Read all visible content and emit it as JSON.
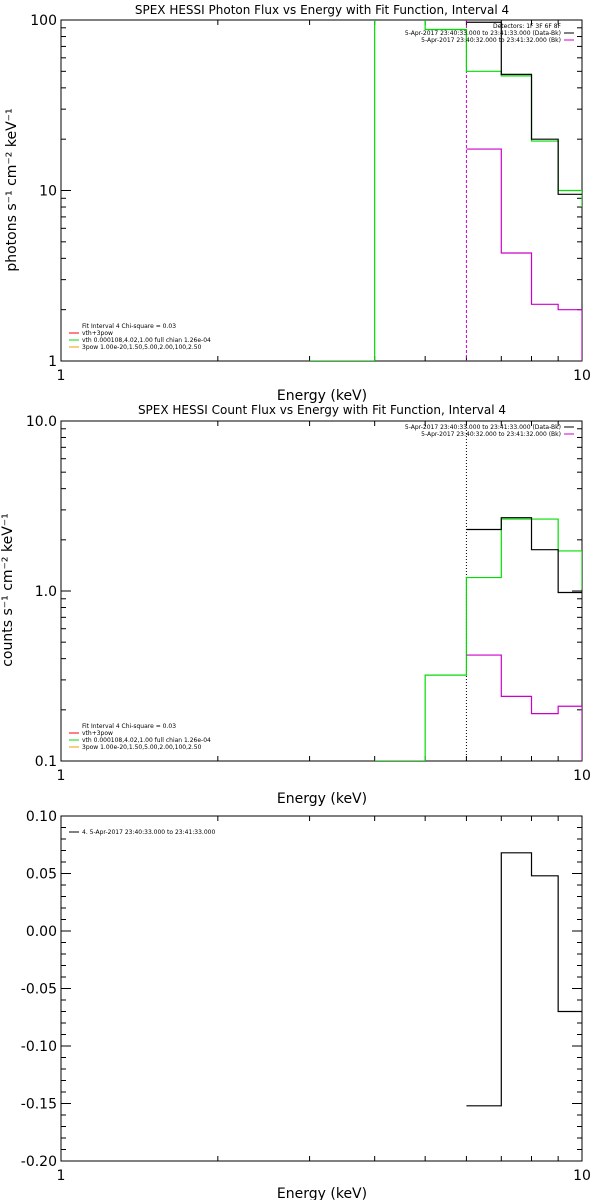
{
  "chart_data": [
    {
      "id": "photon",
      "type": "line",
      "title": "SPEX HESSI Photon Flux vs Energy with Fit Function, Interval 4",
      "xlabel": "Energy (keV)",
      "ylabel": "photons s⁻¹ cm⁻² keV⁻¹",
      "xscale": "log",
      "yscale": "log",
      "xlim": [
        1,
        10
      ],
      "ylim": [
        1,
        100
      ],
      "xticks": [
        1,
        10
      ],
      "xtick_labels": [
        "1",
        "10"
      ],
      "yticks": [
        1,
        10,
        100
      ],
      "ytick_labels": [
        "1",
        "10",
        "100"
      ],
      "vlines": [
        {
          "x": 6,
          "color": "#cc00cc",
          "style": "dashed"
        }
      ],
      "legend_tr": [
        {
          "text": "Detectors: 1F 3F 6F 8F",
          "color": null
        },
        {
          "text": "5-Apr-2017 23:40:33.000 to 23:41:33.000 (Data-Bk)",
          "color": "#000000"
        },
        {
          "text": "5-Apr-2017 23:40:32.000 to 23:41:32.000 (Bk)",
          "color": "#cc00cc"
        }
      ],
      "legend_bl": [
        {
          "text": "Fit Interval  4   Chi-square = 0.03",
          "color": null
        },
        {
          "text": "vth+3pow",
          "color": "#ff0000"
        },
        {
          "text": "vth 0.000108,4.02,1.00  full chian 1.26e-04",
          "color": "#00dd00"
        },
        {
          "text": "3pow 1.00e-20,1.50,5.00,2.00,100,2.50",
          "color": "#e8a000"
        }
      ],
      "series": [
        {
          "color": "#00dd00",
          "step": true,
          "x": [
            3,
            4,
            5,
            6,
            7,
            8,
            9,
            10
          ],
          "y": [
            1,
            150,
            88,
            50,
            47,
            19.5,
            10,
            8
          ]
        },
        {
          "color": "#000000",
          "step": true,
          "x": [
            6,
            7,
            8,
            9,
            10
          ],
          "y": [
            97,
            48,
            20,
            9.5,
            9.5
          ]
        },
        {
          "color": "#cc00cc",
          "step": true,
          "x": [
            6,
            7,
            8,
            9,
            10
          ],
          "y": [
            17.5,
            4.3,
            2.15,
            2.0,
            1
          ]
        }
      ]
    },
    {
      "id": "count",
      "type": "line",
      "title": "SPEX HESSI Count Flux vs Energy with Fit Function, Interval 4",
      "xlabel": "Energy (keV)",
      "ylabel": "counts s⁻¹ cm⁻² keV⁻¹",
      "xscale": "log",
      "yscale": "log",
      "xlim": [
        1,
        10
      ],
      "ylim": [
        0.1,
        10
      ],
      "xticks": [
        1,
        10
      ],
      "xtick_labels": [
        "1",
        "10"
      ],
      "yticks": [
        0.1,
        1,
        10
      ],
      "ytick_labels": [
        "0.1",
        "1.0",
        "10.0"
      ],
      "vlines": [
        {
          "x": 6,
          "color": "#000000",
          "style": "dotted"
        }
      ],
      "legend_tr": [
        {
          "text": "5-Apr-2017 23:40:33.000 to 23:41:33.000 (Data-Bk)",
          "color": "#000000"
        },
        {
          "text": "5-Apr-2017 23:40:32.000 to 23:41:32.000 (Bk)",
          "color": "#cc00cc"
        }
      ],
      "legend_bl": [
        {
          "text": "Fit Interval  4   Chi-square = 0.03",
          "color": null
        },
        {
          "text": "vth+3pow",
          "color": "#ff0000"
        },
        {
          "text": "vth 0.000108,4.02,1.00  full chian 1.26e-04",
          "color": "#00dd00"
        },
        {
          "text": "3pow 1.00e-20,1.50,5.00,2.00,100,2.50",
          "color": "#e8a000"
        }
      ],
      "series": [
        {
          "color": "#00dd00",
          "step": true,
          "x": [
            4,
            5,
            6,
            7,
            8,
            9,
            10
          ],
          "y": [
            0.1,
            0.32,
            1.2,
            2.65,
            2.65,
            1.72,
            1.02
          ]
        },
        {
          "color": "#000000",
          "step": true,
          "x": [
            6,
            7,
            8,
            9,
            10
          ],
          "y": [
            2.3,
            2.7,
            1.75,
            0.98,
            0.98
          ]
        },
        {
          "color": "#cc00cc",
          "step": true,
          "x": [
            6,
            7,
            8,
            9,
            10
          ],
          "y": [
            0.42,
            0.24,
            0.19,
            0.21,
            0.1
          ]
        }
      ]
    },
    {
      "id": "residual",
      "type": "line",
      "title": "",
      "xlabel": "Energy (keV)",
      "ylabel": "",
      "xscale": "log",
      "yscale": "linear",
      "xlim": [
        1,
        10
      ],
      "ylim": [
        -0.2,
        0.1
      ],
      "xticks": [
        1,
        10
      ],
      "xtick_labels": [
        "1",
        "10"
      ],
      "yticks": [
        -0.2,
        -0.15,
        -0.1,
        -0.05,
        0,
        0.05,
        0.1
      ],
      "ytick_labels": [
        "-0.20",
        "-0.15",
        "-0.10",
        "-0.05",
        "0.00",
        "0.05",
        "0.10"
      ],
      "vlines": [],
      "legend_tl": [
        {
          "text": "4. 5-Apr-2017 23:40:33.000 to 23:41:33.000",
          "color": "#000000"
        }
      ],
      "legend_bl": [],
      "series": [
        {
          "color": "#000000",
          "step": true,
          "x": [
            6,
            7,
            8,
            9,
            10
          ],
          "y": [
            -0.152,
            0.068,
            0.048,
            -0.07,
            -0.07
          ]
        }
      ]
    }
  ]
}
